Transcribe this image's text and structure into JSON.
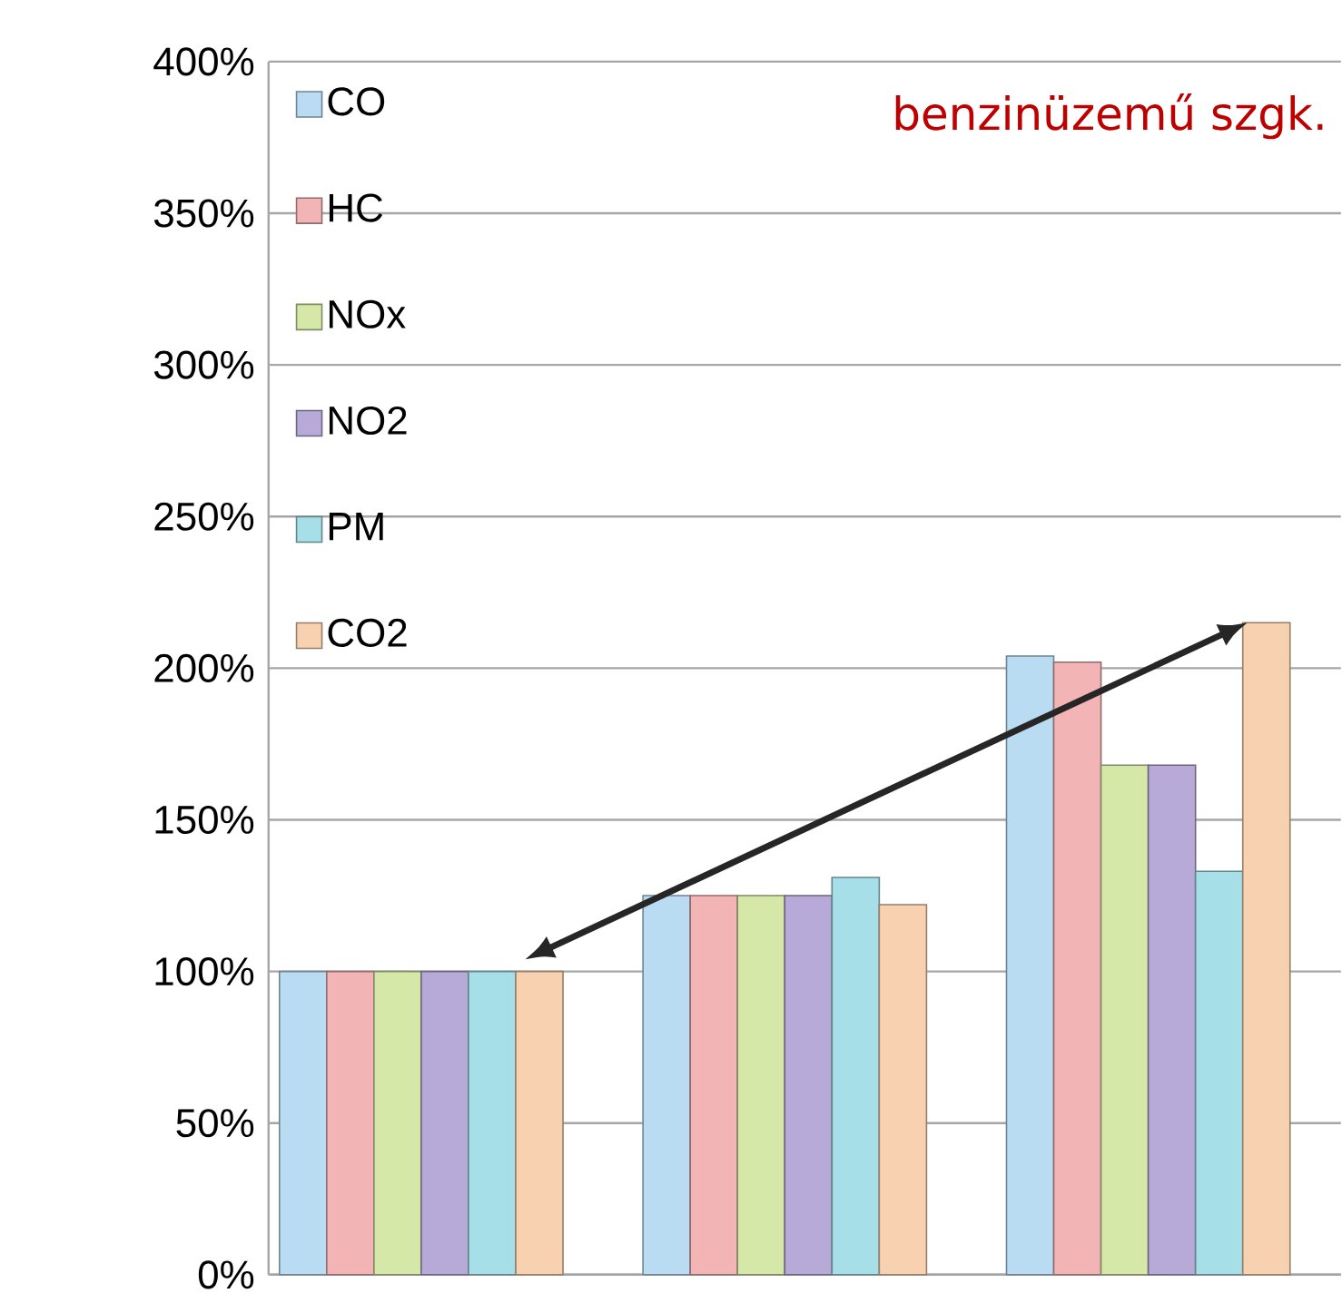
{
  "chart_data": {
    "type": "bar",
    "categories": [
      null,
      null,
      null
    ],
    "series": [
      {
        "name": "CO",
        "color": "#b9dcf2",
        "values": [
          100,
          125,
          204
        ]
      },
      {
        "name": "HC",
        "color": "#f2b4b4",
        "values": [
          100,
          125,
          202
        ]
      },
      {
        "name": "NOx",
        "color": "#d6e8a8",
        "values": [
          100,
          125,
          168
        ]
      },
      {
        "name": "NO2",
        "color": "#b7a9d8",
        "values": [
          100,
          125,
          168
        ]
      },
      {
        "name": "PM",
        "color": "#a6dfe8",
        "values": [
          100,
          131,
          133
        ]
      },
      {
        "name": "CO2",
        "color": "#f8d2b0",
        "values": [
          100,
          122,
          215
        ]
      }
    ],
    "ylim": [
      0,
      400
    ],
    "yticks": [
      {
        "value": 0,
        "label": "0%"
      },
      {
        "value": 50,
        "label": "50%"
      },
      {
        "value": 100,
        "label": "100%"
      },
      {
        "value": 150,
        "label": "150%"
      },
      {
        "value": 200,
        "label": "200%"
      },
      {
        "value": 250,
        "label": "250%"
      },
      {
        "value": 300,
        "label": "300%"
      },
      {
        "value": 350,
        "label": "350%"
      },
      {
        "value": 400,
        "label": "400%"
      }
    ],
    "grid": "y",
    "legend": "top left",
    "tick_labels": "y",
    "annotations": [
      "benzinüzemű szgk."
    ]
  }
}
